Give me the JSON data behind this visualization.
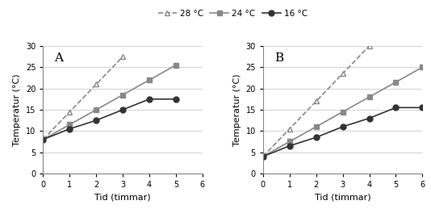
{
  "panel_A": {
    "label": "A",
    "series_28": {
      "x": [
        0,
        1,
        2,
        3
      ],
      "y": [
        8,
        14.5,
        21,
        27.5
      ]
    },
    "series_24": {
      "x": [
        0,
        1,
        2,
        3,
        4,
        5
      ],
      "y": [
        8,
        11.5,
        15,
        18.5,
        22,
        25.5
      ]
    },
    "series_16": {
      "x": [
        0,
        1,
        2,
        3,
        4,
        5
      ],
      "y": [
        8,
        10.5,
        12.5,
        15,
        17.5,
        17.5
      ]
    },
    "xlim": [
      0,
      6
    ],
    "ylim": [
      0,
      30
    ],
    "xticks": [
      0,
      1,
      2,
      3,
      4,
      5,
      6
    ],
    "yticks": [
      0,
      5,
      10,
      15,
      20,
      25,
      30
    ],
    "xlabel": "Tid (timmar)",
    "ylabel": "Temperatur (°C)"
  },
  "panel_B": {
    "label": "B",
    "series_28": {
      "x": [
        0,
        1,
        2,
        3,
        4
      ],
      "y": [
        4,
        10.5,
        17,
        23.5,
        30
      ]
    },
    "series_24": {
      "x": [
        0,
        1,
        2,
        3,
        4,
        5,
        6
      ],
      "y": [
        4,
        7.5,
        11,
        14.5,
        18,
        21.5,
        25
      ]
    },
    "series_16": {
      "x": [
        0,
        1,
        2,
        3,
        4,
        5,
        6
      ],
      "y": [
        4,
        6.5,
        8.5,
        11,
        13,
        15.5,
        15.5
      ]
    },
    "xlim": [
      0,
      6
    ],
    "ylim": [
      0,
      30
    ],
    "xticks": [
      0,
      1,
      2,
      3,
      4,
      5,
      6
    ],
    "yticks": [
      0,
      5,
      10,
      15,
      20,
      25,
      30
    ],
    "xlabel": "Tid (timmar)",
    "ylabel": "Temperatur (°C)"
  },
  "legend_labels": [
    "28 °C",
    "24 °C",
    "16 °C"
  ],
  "color_28": "#888888",
  "color_24": "#888888",
  "color_16": "#333333",
  "marker_28": "^",
  "marker_24": "s",
  "marker_16": "o",
  "line_style_28": "--",
  "line_style_24": "-",
  "line_style_16": "-",
  "markersize": 5,
  "linewidth": 1.2,
  "label_fontsize": 8,
  "tick_fontsize": 7,
  "legend_fontsize": 7.5,
  "panel_label_fontsize": 11
}
